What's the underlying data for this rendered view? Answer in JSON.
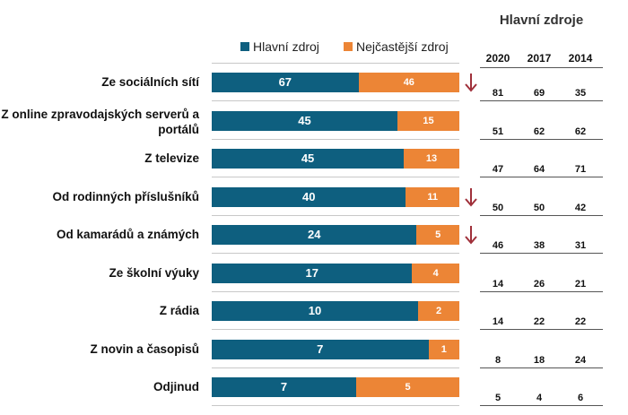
{
  "chart_data": {
    "type": "bar",
    "stacked": true,
    "normalized": true,
    "legend": {
      "placement": "top",
      "entries": [
        "Hlavní zdroj",
        "Nejčastější zdroj"
      ]
    },
    "categories": [
      "Ze sociálních sítí",
      "Z online zpravodajských serverů a portálů",
      "Z televize",
      "Od rodinných příslušníků",
      "Od kamarádů a známých",
      "Ze školní výuky",
      "Z rádia",
      "Z novin a časopisů",
      "Odjinud"
    ],
    "series": [
      {
        "name": "Hlavní zdroj",
        "color": "#0e5f7f",
        "values": [
          67,
          45,
          45,
          40,
          24,
          17,
          10,
          7,
          7
        ]
      },
      {
        "name": "Nejčastější zdroj",
        "color": "#ec8536",
        "values": [
          46,
          15,
          13,
          11,
          5,
          4,
          2,
          1,
          5
        ]
      }
    ],
    "decline_arrows": [
      true,
      false,
      false,
      true,
      true,
      false,
      false,
      false,
      false
    ],
    "arrow_color": "#a0303a"
  },
  "table": {
    "title": "Hlavní zdroje",
    "columns": [
      "2020",
      "2017",
      "2014"
    ],
    "rows": [
      [
        81,
        69,
        35
      ],
      [
        51,
        62,
        62
      ],
      [
        47,
        64,
        71
      ],
      [
        50,
        50,
        42
      ],
      [
        46,
        38,
        31
      ],
      [
        14,
        26,
        21
      ],
      [
        14,
        22,
        22
      ],
      [
        8,
        18,
        24
      ],
      [
        5,
        4,
        6
      ]
    ]
  }
}
